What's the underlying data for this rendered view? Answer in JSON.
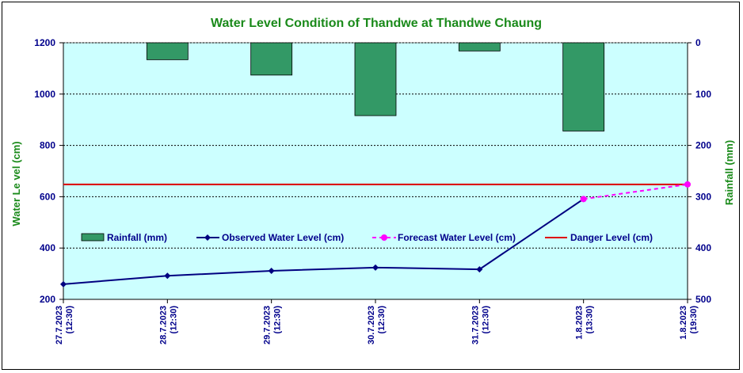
{
  "chart_data": {
    "type": "bar+line",
    "title": "Water Level Condition  of  Thandwe  at  Thandwe  Chaung",
    "ylabel_left": "Water Le vel (cm)",
    "ylabel_right": "Rainfall (mm)",
    "ylim_left": [
      200,
      1200
    ],
    "yticks_left": [
      200,
      400,
      600,
      800,
      1000,
      1200
    ],
    "ylim_right": [
      0,
      500
    ],
    "yticks_right": [
      0,
      100,
      200,
      300,
      400,
      500
    ],
    "right_axis_inverted": true,
    "grid": true,
    "categories": [
      [
        "27.7.2023",
        "(12:30)"
      ],
      [
        "28.7.2023",
        "(12:30)"
      ],
      [
        "29.7.2023",
        "(12:30)"
      ],
      [
        "30.7.2023",
        "(12:30)"
      ],
      [
        "31.7.2023",
        "(12:30)"
      ],
      [
        "1.8.2023",
        "(13:30)"
      ],
      [
        "1.8.2023",
        "(19:30)"
      ]
    ],
    "series": [
      {
        "name": "Rainfall (mm)",
        "kind": "bar",
        "axis": "right",
        "color": "#339966",
        "values": [
          null,
          33,
          63,
          142,
          16,
          172,
          null
        ]
      },
      {
        "name": "Observed Water Level (cm)",
        "kind": "line",
        "axis": "left",
        "color": "#000080",
        "values": [
          259,
          292,
          311,
          324,
          317,
          591,
          null
        ]
      },
      {
        "name": "Forecast Water Level (cm)",
        "kind": "dashed-line",
        "axis": "left",
        "color": "#ff00ff",
        "values": [
          null,
          null,
          null,
          null,
          null,
          591,
          648
        ]
      },
      {
        "name": "Danger Level (cm)",
        "kind": "hline",
        "axis": "left",
        "color": "#dd0000",
        "value": 648
      }
    ],
    "legend_position": "inside-middle"
  },
  "colors": {
    "plot_background": "#ccffff",
    "title": "#1a8a1a",
    "ticks": "#00008b"
  }
}
